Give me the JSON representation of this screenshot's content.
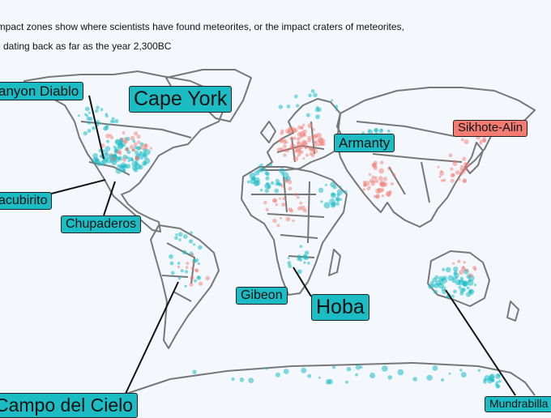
{
  "description": {
    "line1": "impact zones show where scientists have found meteorites, or the impact craters of meteorites,",
    "line2": "e dating back as far as the year 2,300BC"
  },
  "colors": {
    "background": "#f4f8fd",
    "coastline": "#777777",
    "found": "#1cbcc4",
    "fell": "#f27b72"
  },
  "labels": [
    {
      "id": "canyon-diablo",
      "text": "anyon Diablo",
      "color": "teal"
    },
    {
      "id": "cape-york",
      "text": "Cape York",
      "color": "teal"
    },
    {
      "id": "sikhote-alin",
      "text": "Sikhote-Alin",
      "color": "red"
    },
    {
      "id": "armanty",
      "text": "Armanty",
      "color": "teal"
    },
    {
      "id": "bacubirito",
      "text": "acubirito",
      "color": "teal"
    },
    {
      "id": "chupaderos",
      "text": "Chupaderos",
      "color": "teal"
    },
    {
      "id": "gibeon",
      "text": "Gibeon",
      "color": "teal"
    },
    {
      "id": "hoba",
      "text": "Hoba",
      "color": "teal"
    },
    {
      "id": "campo-del-cielo",
      "text": "Campo del Cielo",
      "color": "teal"
    },
    {
      "id": "mundrabilla",
      "text": "Mundrabilla",
      "color": "teal"
    }
  ]
}
